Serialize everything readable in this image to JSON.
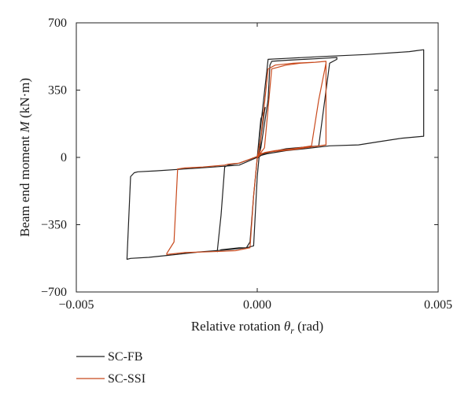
{
  "chart_data": {
    "type": "line",
    "xlabel": "Relative rotation θr (rad)",
    "xlabel_parts": {
      "prefix": "Relative rotation ",
      "symbol": "θ",
      "subscript": "r",
      "suffix": " (rad)"
    },
    "ylabel": "Beam end moment M (kN·m)",
    "ylabel_parts": {
      "prefix": "Beam end moment ",
      "symbol": "M",
      "suffix": " (kN·m)"
    },
    "xlim": [
      -0.005,
      0.005
    ],
    "ylim": [
      -700,
      700
    ],
    "xticks": [
      -0.005,
      0.0,
      0.005
    ],
    "xtick_labels": [
      "−0.005",
      "0.000",
      "0.005"
    ],
    "yticks": [
      -700,
      -350,
      0,
      350,
      700
    ],
    "ytick_labels": [
      "−700",
      "−350",
      "0",
      "350",
      "700"
    ],
    "grid": false,
    "legend_position": "below-left",
    "series": [
      {
        "name": "SC-FB",
        "color": "#222222",
        "x": [
          0.0,
          0.0001,
          0.0003,
          0.00035,
          0.0004,
          0.0008,
          0.0013,
          0.0018,
          0.0022,
          0.0022,
          0.002,
          0.0017,
          0.0008,
          0.0004,
          0.0002,
          0.0,
          -0.0002,
          -0.0005,
          -0.0008,
          -0.0009,
          -0.001,
          -0.0011,
          -0.0011,
          -0.001,
          -0.0005,
          -0.0003,
          -0.0002,
          -0.0001,
          0.0,
          0.0001,
          0.0003,
          0.0008,
          0.0013,
          0.002,
          0.0028,
          0.0033,
          0.004,
          0.0046,
          0.0046,
          0.0044,
          0.0042,
          0.003,
          0.0018,
          0.0008,
          0.0003,
          0.0,
          -0.0005,
          -0.0012,
          -0.002,
          -0.0028,
          -0.0033,
          -0.0034,
          -0.0035,
          -0.0036,
          -0.0035,
          -0.003,
          -0.0025,
          -0.002,
          -0.0015,
          -0.0008,
          -0.0003,
          -0.0001,
          0.0,
          0.0001,
          0.0002,
          0.00022,
          0.0001,
          0.0
        ],
        "y": [
          0,
          50,
          300,
          480,
          500,
          505,
          510,
          515,
          520,
          510,
          490,
          60,
          45,
          30,
          20,
          5,
          -10,
          -30,
          -40,
          -50,
          -300,
          -480,
          -490,
          -480,
          -470,
          -470,
          -440,
          -200,
          -5,
          10,
          20,
          35,
          45,
          60,
          65,
          80,
          100,
          110,
          560,
          555,
          550,
          535,
          525,
          515,
          510,
          0,
          -40,
          -50,
          -60,
          -70,
          -75,
          -80,
          -100,
          -530,
          -525,
          -520,
          -510,
          -500,
          -490,
          -480,
          -470,
          -460,
          -100,
          100,
          240,
          260,
          200,
          0
        ]
      },
      {
        "name": "SC-SSI",
        "color": "#c8491c",
        "x": [
          0.0,
          0.0002,
          0.0004,
          0.0008,
          0.0012,
          0.0016,
          0.0019,
          0.0019,
          0.0017,
          0.0015,
          0.001,
          0.0005,
          0.0002,
          0.0,
          -0.0005,
          -0.0008,
          -0.0009,
          -0.0012,
          -0.0015,
          -0.002,
          -0.0022,
          -0.0023,
          -0.0025,
          -0.0025,
          -0.002,
          -0.0012,
          -0.0006,
          -0.0002,
          -0.0001,
          0.0,
          0.0001,
          0.0004,
          0.001,
          0.0015,
          0.0019,
          0.0019,
          0.0016,
          0.001,
          0.0005,
          0.0003,
          0.0001,
          0.0,
          0.0001
        ],
        "y": [
          0,
          50,
          460,
          480,
          490,
          495,
          500,
          490,
          300,
          60,
          45,
          35,
          25,
          5,
          -30,
          -35,
          -40,
          -45,
          -50,
          -55,
          -60,
          -440,
          -500,
          -505,
          -495,
          -490,
          -485,
          -470,
          -200,
          -5,
          20,
          30,
          40,
          55,
          65,
          500,
          495,
          490,
          480,
          460,
          100,
          0,
          40
        ]
      }
    ]
  }
}
